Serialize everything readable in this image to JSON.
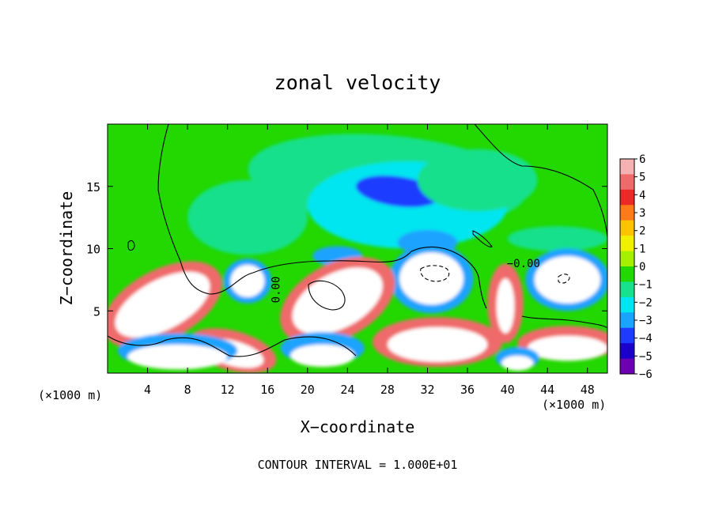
{
  "chart_data": {
    "type": "heatmap",
    "title": "zonal velocity",
    "xlabel": "X−coordinate",
    "ylabel": "Z−coordinate",
    "x_unit_label": "(×1000 m)",
    "y_unit_label": "(×1000 m)",
    "footer": "CONTOUR INTERVAL = 1.000E+01",
    "xlim": [
      0,
      50
    ],
    "ylim": [
      0,
      20
    ],
    "x_ticks": [
      4,
      8,
      12,
      16,
      20,
      24,
      28,
      32,
      36,
      40,
      44,
      48
    ],
    "y_ticks": [
      5,
      10,
      15
    ],
    "contour_labels": [
      {
        "text": "0.00",
        "x": 17.2,
        "z": 6.7,
        "rotate": -90
      },
      {
        "text": "−0.00",
        "x": 41.6,
        "z": 8.5,
        "rotate": 0
      }
    ],
    "colorbar": {
      "ticks": [
        "6",
        "5",
        "4",
        "3",
        "2",
        "1",
        "0",
        "−1",
        "−2",
        "−3",
        "−4",
        "−5",
        "−6"
      ],
      "colors": [
        "#f5b2b2",
        "#ef6a6a",
        "#ea2a26",
        "#ff7a18",
        "#ffc400",
        "#f0f000",
        "#a4f000",
        "#22d800",
        "#18e08c",
        "#00e6f0",
        "#1aa3ff",
        "#1e3cff",
        "#1a00c8",
        "#6e00b4"
      ]
    },
    "field": {
      "background": "#22d800",
      "blobs": [
        {
          "x": 28,
          "z": 15.5,
          "rx": 14,
          "rz": 3.6,
          "rot": -5,
          "v": -2.3
        },
        {
          "x": 30,
          "z": 13.5,
          "rx": 10,
          "rz": 3.5,
          "rot": 0,
          "v": -3.2
        },
        {
          "x": 29,
          "z": 14.6,
          "rx": 4.2,
          "rz": 1.2,
          "rot": -8,
          "v": -5.0
        },
        {
          "x": 14,
          "z": 12.5,
          "rx": 6,
          "rz": 3,
          "rot": 0,
          "v": -2.0
        },
        {
          "x": 37,
          "z": 15.5,
          "rx": 6,
          "rz": 2.5,
          "rot": 0,
          "v": -2.0
        },
        {
          "x": 23,
          "z": 9.4,
          "rx": 2.5,
          "rz": 0.8,
          "rot": 0,
          "v": -4.0
        },
        {
          "x": 32,
          "z": 10.5,
          "rx": 3,
          "rz": 1.0,
          "rot": 0,
          "v": -4.3
        },
        {
          "x": 45,
          "z": 10.8,
          "rx": 5,
          "rz": 1.0,
          "rot": 0,
          "v": -2.2
        },
        {
          "x": 14,
          "z": 7.4,
          "rx": 2.4,
          "rz": 1.8,
          "rot": 0,
          "v": -4.8
        },
        {
          "x": 14,
          "z": 7.4,
          "rx": 1.7,
          "rz": 1.3,
          "rot": 0,
          "v": 6.0
        },
        {
          "x": 32.4,
          "z": 7.6,
          "rx": 4.2,
          "rz": 2.8,
          "rot": 0,
          "v": -4.8
        },
        {
          "x": 32.4,
          "z": 7.6,
          "rx": 3.2,
          "rz": 2.1,
          "rot": 0,
          "v": 6.0
        },
        {
          "x": 46,
          "z": 7.5,
          "rx": 4.2,
          "rz": 2.5,
          "rot": 0,
          "v": -4.8
        },
        {
          "x": 46,
          "z": 7.5,
          "rx": 3.3,
          "rz": 1.9,
          "rot": 0,
          "v": 6.0
        },
        {
          "x": 5.5,
          "z": 5.5,
          "rx": 6.5,
          "rz": 2.8,
          "rot": 28,
          "v": 4.2
        },
        {
          "x": 5.5,
          "z": 5.5,
          "rx": 5.2,
          "rz": 2.0,
          "rot": 28,
          "v": 6.0
        },
        {
          "x": 23,
          "z": 5.8,
          "rx": 6.2,
          "rz": 3.0,
          "rot": 28,
          "v": 4.2
        },
        {
          "x": 23,
          "z": 5.8,
          "rx": 4.9,
          "rz": 2.2,
          "rot": 28,
          "v": 6.0
        },
        {
          "x": 39.8,
          "z": 5.6,
          "rx": 1.8,
          "rz": 3.2,
          "rot": 0,
          "v": 4.5
        },
        {
          "x": 39.8,
          "z": 5.4,
          "rx": 0.9,
          "rz": 2.2,
          "rot": 0,
          "v": 6.0
        },
        {
          "x": 33,
          "z": 2.5,
          "rx": 6.5,
          "rz": 2.0,
          "rot": 0,
          "v": 4.2
        },
        {
          "x": 33,
          "z": 2.3,
          "rx": 5.0,
          "rz": 1.4,
          "rot": 0,
          "v": 6.0
        },
        {
          "x": 12.5,
          "z": 1.8,
          "rx": 4.5,
          "rz": 1.6,
          "rot": -15,
          "v": 4.2
        },
        {
          "x": 12.5,
          "z": 1.6,
          "rx": 3.2,
          "rz": 1.0,
          "rot": -15,
          "v": 6.0
        },
        {
          "x": 7,
          "z": 1.8,
          "rx": 6,
          "rz": 1.4,
          "rot": 0,
          "v": -4.8
        },
        {
          "x": 7,
          "z": 1.3,
          "rx": 5,
          "rz": 1.0,
          "rot": 0,
          "v": 6.0
        },
        {
          "x": 21.5,
          "z": 2.0,
          "rx": 4.2,
          "rz": 1.3,
          "rot": 0,
          "v": -4.8
        },
        {
          "x": 21.5,
          "z": 1.4,
          "rx": 3.2,
          "rz": 0.9,
          "rot": 0,
          "v": 6.0
        },
        {
          "x": 46,
          "z": 2.4,
          "rx": 5,
          "rz": 1.4,
          "rot": 0,
          "v": 4.2
        },
        {
          "x": 46,
          "z": 2.0,
          "rx": 4,
          "rz": 1.0,
          "rot": 0,
          "v": 6.0
        },
        {
          "x": 41,
          "z": 1.2,
          "rx": 2.2,
          "rz": 0.9,
          "rot": 0,
          "v": -4.8
        },
        {
          "x": 41,
          "z": 0.8,
          "rx": 1.6,
          "rz": 0.6,
          "rot": 0,
          "v": 6.0
        }
      ]
    }
  }
}
